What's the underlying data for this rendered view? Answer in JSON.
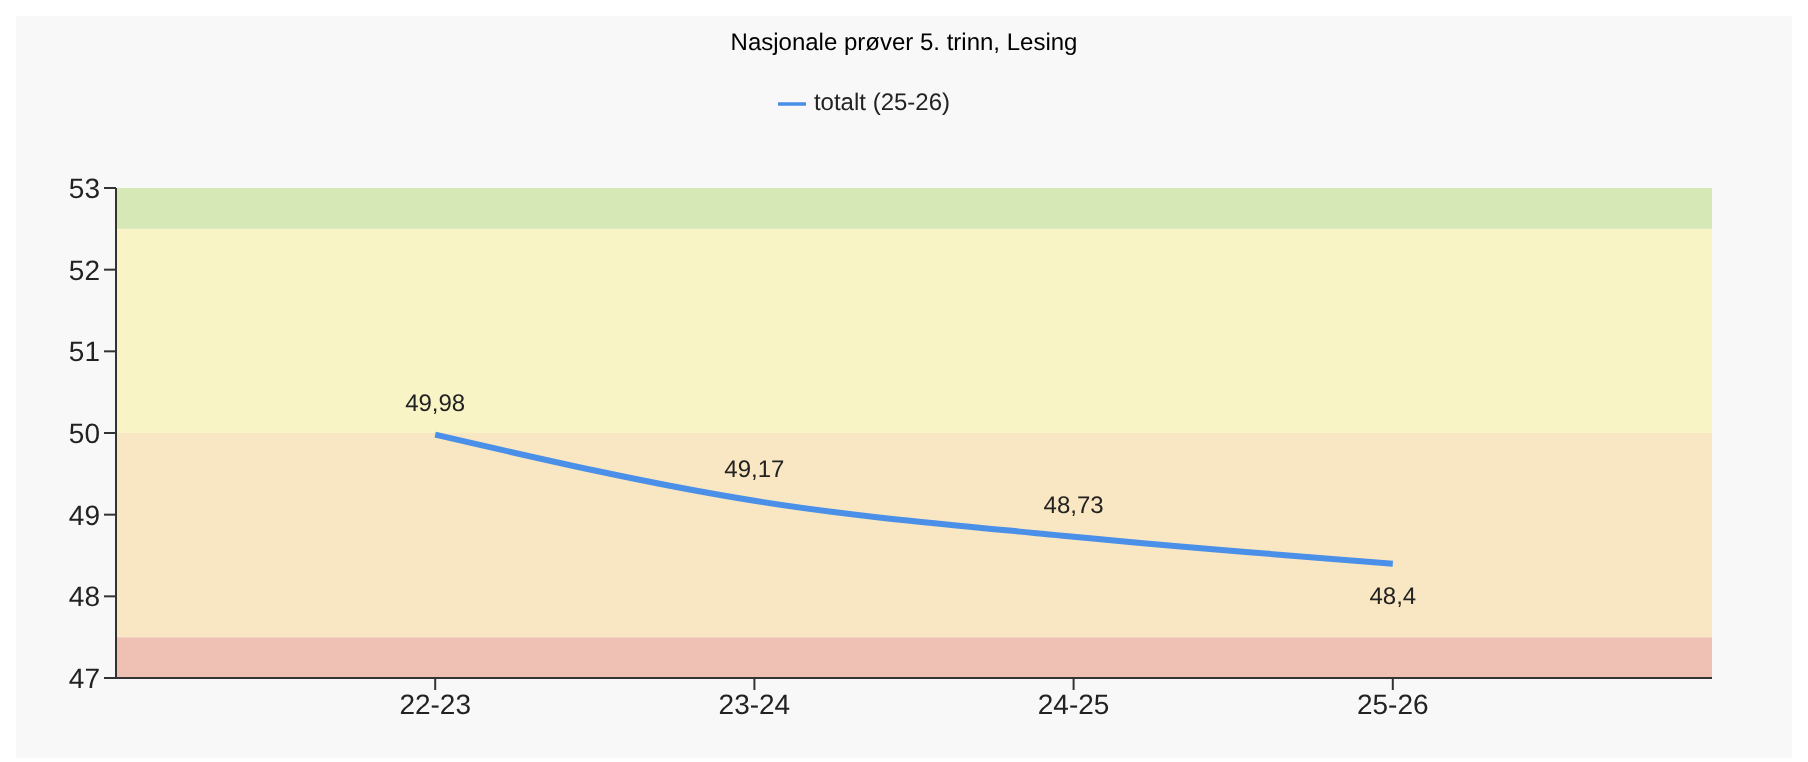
{
  "chart_data": {
    "type": "line",
    "title": "Nasjonale prøver 5. trinn, Lesing",
    "categories": [
      null,
      "22-23",
      "23-24",
      "24-25",
      "25-26",
      null
    ],
    "series": [
      {
        "name": "totalt (25-26)",
        "color": "#4a8fe8",
        "values": [
          null,
          49.98,
          49.17,
          48.73,
          48.4,
          null
        ],
        "value_labels": [
          null,
          "49,98",
          "49,17",
          "48,73",
          "48,4",
          null
        ]
      }
    ],
    "ylim": [
      47,
      53
    ],
    "yticks": [
      47,
      48,
      49,
      50,
      51,
      52,
      53
    ],
    "bands": [
      {
        "axis": "y",
        "from": 47,
        "to": 47.5,
        "color": "#efc1b5"
      },
      {
        "axis": "y",
        "from": 47.5,
        "to": 50,
        "color": "#f9e6c2"
      },
      {
        "axis": "y",
        "from": 50,
        "to": 52.5,
        "color": "#f8f4c6"
      },
      {
        "axis": "y",
        "from": 52.5,
        "to": 53,
        "color": "#d6e8b6"
      }
    ],
    "legend": "top",
    "marker": "none",
    "line_style": "solid"
  }
}
